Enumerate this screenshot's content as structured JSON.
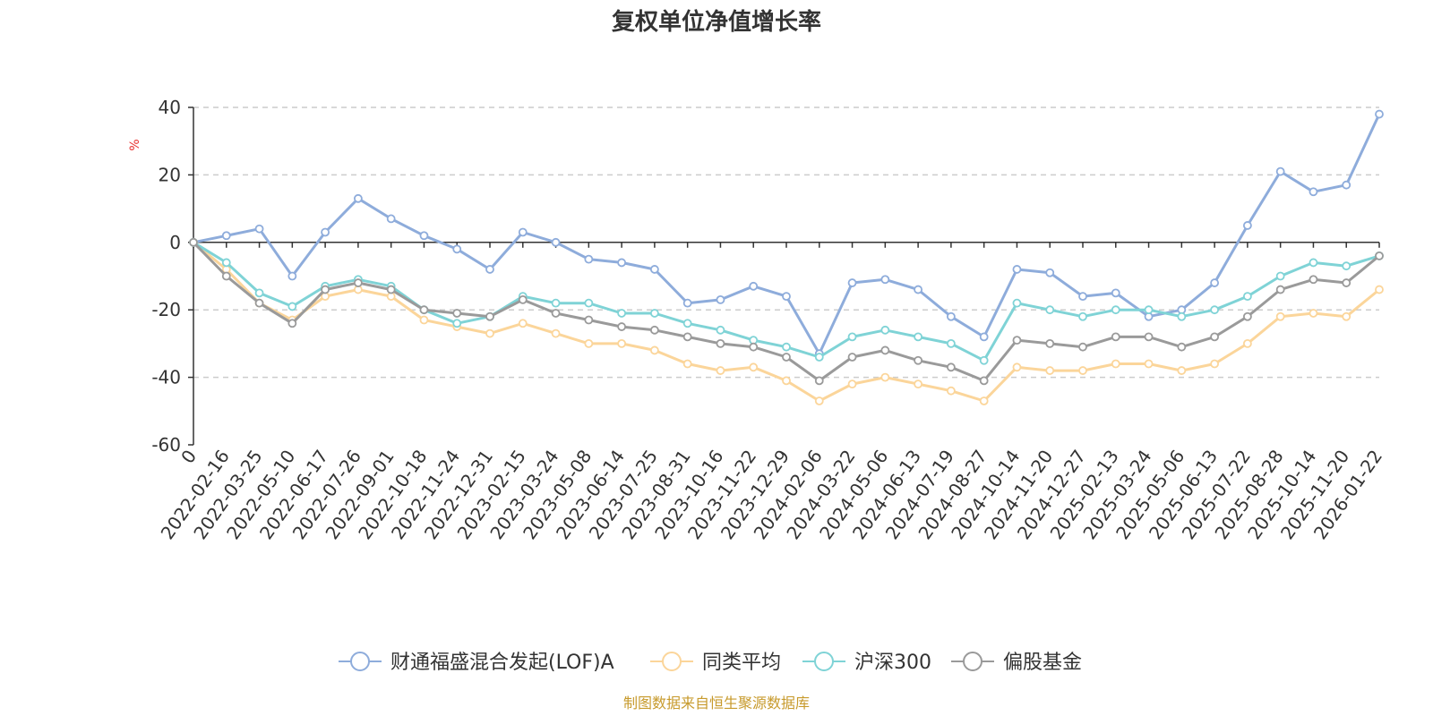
{
  "chart_data": {
    "type": "line",
    "title": "复权单位净值增长率",
    "ylabel": "%",
    "xlabel": "",
    "ylim": [
      -60,
      40
    ],
    "yticks": [
      40,
      20,
      0,
      -20,
      -40,
      -60
    ],
    "x_tick_labels": [
      "0",
      "2022-02-16",
      "2022-03-25",
      "2022-05-10",
      "2022-06-17",
      "2022-07-26",
      "2022-09-01",
      "2022-10-18",
      "2022-11-24",
      "2022-12-31",
      "2023-02-15",
      "2023-03-24",
      "2023-05-08",
      "2023-06-14",
      "2023-07-25",
      "2023-08-31",
      "2023-10-16",
      "2023-11-22",
      "2023-12-29",
      "2024-02-06",
      "2024-03-22",
      "2024-05-06",
      "2024-06-13",
      "2024-07-19",
      "2024-08-27",
      "2024-10-14",
      "2024-11-20",
      "2024-12-27",
      "2025-02-13",
      "2025-03-24",
      "2025-05-06",
      "2025-06-13",
      "2025-07-22",
      "2025-08-28",
      "2025-10-14",
      "2025-11-20",
      "2026-01-22"
    ],
    "series": [
      {
        "name": "财通福盛混合发起(LOF)A",
        "color": "#8eacdb",
        "values": [
          0,
          2,
          4,
          -10,
          3,
          13,
          7,
          2,
          -2,
          -8,
          3,
          0,
          -5,
          -6,
          -8,
          -18,
          -17,
          -13,
          -16,
          -33,
          -12,
          -11,
          -14,
          -22,
          -28,
          -8,
          -9,
          -16,
          -15,
          -22,
          -20,
          -12,
          5,
          21,
          15,
          17,
          38
        ]
      },
      {
        "name": "同类平均",
        "color": "#fbd59a",
        "values": [
          0,
          -8,
          -18,
          -23,
          -16,
          -14,
          -16,
          -23,
          -25,
          -27,
          -24,
          -27,
          -30,
          -30,
          -32,
          -36,
          -38,
          -37,
          -41,
          -47,
          -42,
          -40,
          -42,
          -44,
          -47,
          -37,
          -38,
          -38,
          -36,
          -36,
          -38,
          -36,
          -30,
          -22,
          -21,
          -22,
          -14
        ]
      },
      {
        "name": "沪深300",
        "color": "#7fd3d6",
        "values": [
          0,
          -6,
          -15,
          -19,
          -13,
          -11,
          -13,
          -20,
          -24,
          -22,
          -16,
          -18,
          -18,
          -21,
          -21,
          -24,
          -26,
          -29,
          -31,
          -34,
          -28,
          -26,
          -28,
          -30,
          -35,
          -18,
          -20,
          -22,
          -20,
          -20,
          -22,
          -20,
          -16,
          -10,
          -6,
          -7,
          -4
        ]
      },
      {
        "name": "偏股基金",
        "color": "#9a9a9a",
        "values": [
          0,
          -10,
          -18,
          -24,
          -14,
          -12,
          -14,
          -20,
          -21,
          -22,
          -17,
          -21,
          -23,
          -25,
          -26,
          -28,
          -30,
          -31,
          -34,
          -41,
          -34,
          -32,
          -35,
          -37,
          -41,
          -29,
          -30,
          -31,
          -28,
          -28,
          -31,
          -28,
          -22,
          -14,
          -11,
          -12,
          -4
        ]
      }
    ],
    "legend_position": "bottom-center",
    "grid": true,
    "source": "制图数据来自恒生聚源数据库"
  }
}
